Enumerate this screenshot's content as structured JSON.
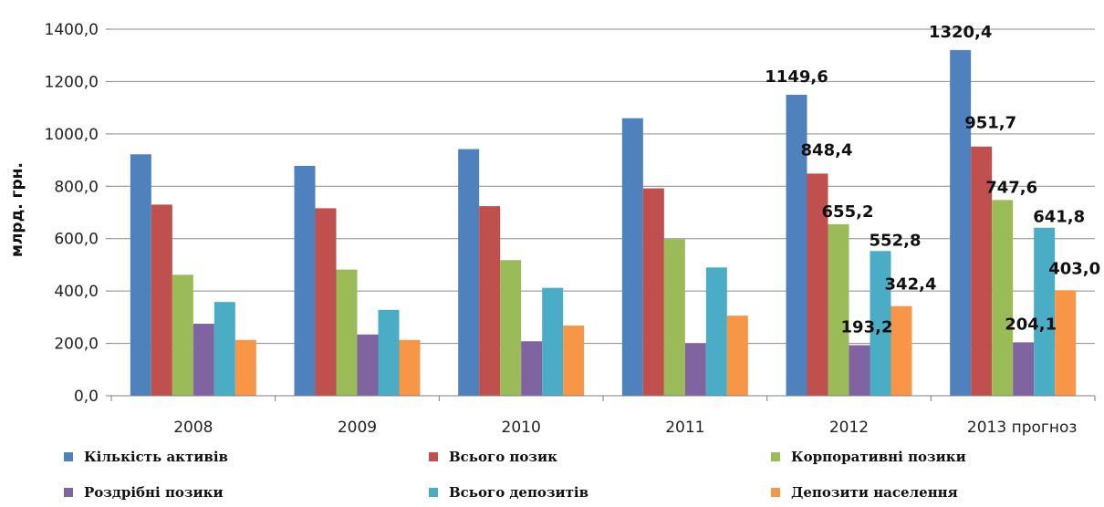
{
  "chart_data": {
    "type": "bar",
    "ylabel": "млрд. грн.",
    "ylim": [
      0,
      1400
    ],
    "yticks": [
      "0,0",
      "200,0",
      "400,0",
      "600,0",
      "800,0",
      "1000,0",
      "1200,0",
      "1400,0"
    ],
    "categories": [
      "2008",
      "2009",
      "2010",
      "2011",
      "2012",
      "2013 прогноз"
    ],
    "grid": "horizontal",
    "legend_position": "bottom",
    "series": [
      {
        "name": "Кількість активів",
        "color": "#4f81bd",
        "values": [
          922,
          878,
          942,
          1060,
          1149.6,
          1320.4
        ],
        "labels": [
          "",
          "",
          "",
          "",
          "1149,6",
          "1320,4"
        ]
      },
      {
        "name": "Всього позик",
        "color": "#c0504d",
        "values": [
          730,
          716,
          724,
          792,
          848.4,
          951.7
        ],
        "labels": [
          "",
          "",
          "",
          "",
          "848,4",
          "951,7"
        ]
      },
      {
        "name": "Корпоративні позики",
        "color": "#9bbb59",
        "values": [
          462,
          482,
          518,
          598,
          655.2,
          747.6
        ],
        "labels": [
          "",
          "",
          "",
          "",
          "655,2",
          "747,6"
        ]
      },
      {
        "name": "Роздрібні позики",
        "color": "#8064a2",
        "values": [
          275,
          234,
          208,
          200,
          193.2,
          204.1
        ],
        "labels": [
          "",
          "",
          "",
          "",
          "193,2",
          "204,1"
        ]
      },
      {
        "name": "Всього депозитів",
        "color": "#4bacc6",
        "values": [
          358,
          328,
          412,
          490,
          552.8,
          641.8
        ],
        "labels": [
          "",
          "",
          "",
          "",
          "552,8",
          "641,8"
        ]
      },
      {
        "name": "Депозити населення",
        "color": "#f79646",
        "values": [
          213,
          213,
          268,
          306,
          342.4,
          403.0
        ],
        "labels": [
          "",
          "",
          "",
          "",
          "342,4",
          "403,0"
        ]
      }
    ]
  }
}
